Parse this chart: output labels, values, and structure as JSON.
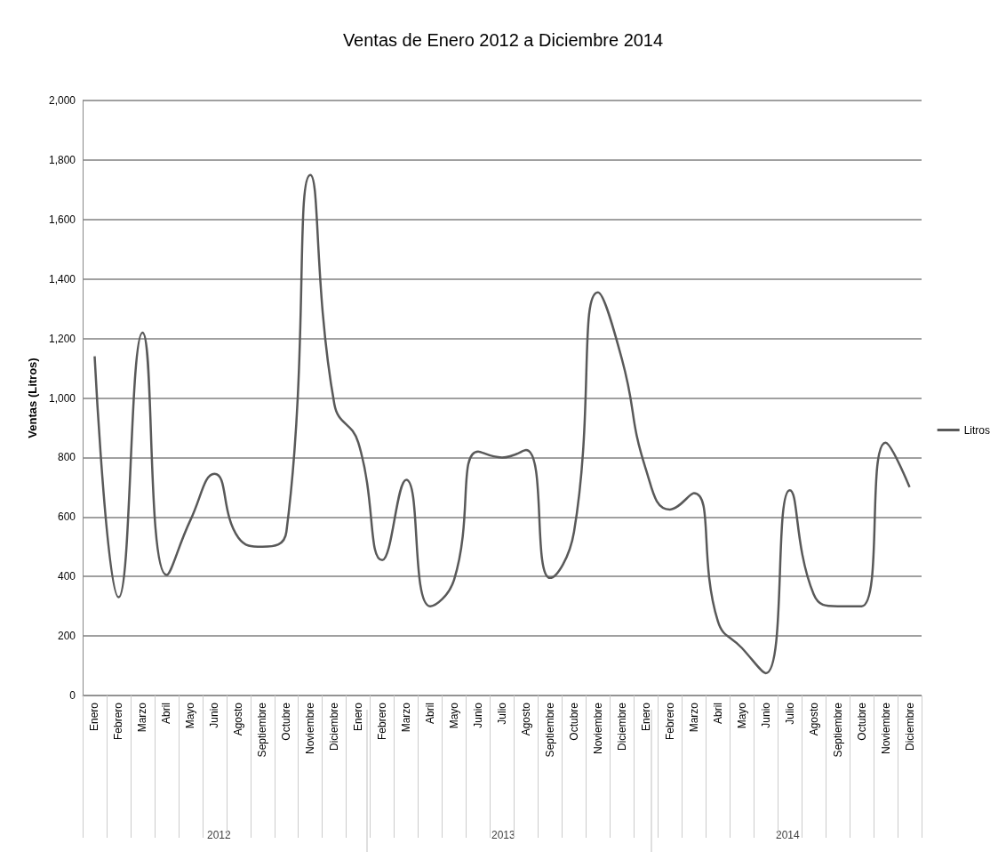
{
  "chart_data": {
    "type": "line",
    "title": "Ventas de Enero 2012 a Diciembre 2014",
    "ylabel": "Ventas (Litros)",
    "categories": [
      "Enero",
      "Febrero",
      "Marzo",
      "Abril",
      "Mayo",
      "Junio",
      "Agosto",
      "Septiembre",
      "Octubre",
      "Noviembre",
      "Diciembre",
      "Enero",
      "Febrero",
      "Marzo",
      "Abril",
      "Mayo",
      "Junio",
      "Julio",
      "Agosto",
      "Septiembre",
      "Octubre",
      "Noviembre",
      "Diciembre",
      "Enero",
      "Febrero",
      "Marzo",
      "Abril",
      "Mayo",
      "Junio",
      "Julio",
      "Agosto",
      "Septiembre",
      "Octubre",
      "Noviembre",
      "Diciembre"
    ],
    "series": [
      {
        "name": "Litros",
        "color": "#595959",
        "values": [
          1140,
          330,
          1220,
          405,
          590,
          745,
          530,
          500,
          550,
          1750,
          980,
          850,
          455,
          725,
          300,
          390,
          820,
          800,
          825,
          395,
          550,
          1355,
          1130,
          760,
          625,
          680,
          250,
          160,
          75,
          690,
          340,
          300,
          300,
          850,
          700
        ]
      }
    ],
    "annotations": [
      "2012",
      "2013",
      "2014"
    ],
    "ylim": [
      0,
      2000
    ],
    "yticks": [
      0,
      200,
      400,
      600,
      800,
      {
        "value": 1000,
        "label": "1,000"
      },
      {
        "value": 1200,
        "label": "1,200"
      },
      {
        "value": 1400,
        "label": "1,400"
      },
      {
        "value": 1600,
        "label": "1,600"
      },
      {
        "value": 1800,
        "label": "1,800"
      },
      {
        "value": 2000,
        "label": "2,000"
      }
    ],
    "grid": "y",
    "legend": "right",
    "marker": "none",
    "line_style": "solid"
  }
}
